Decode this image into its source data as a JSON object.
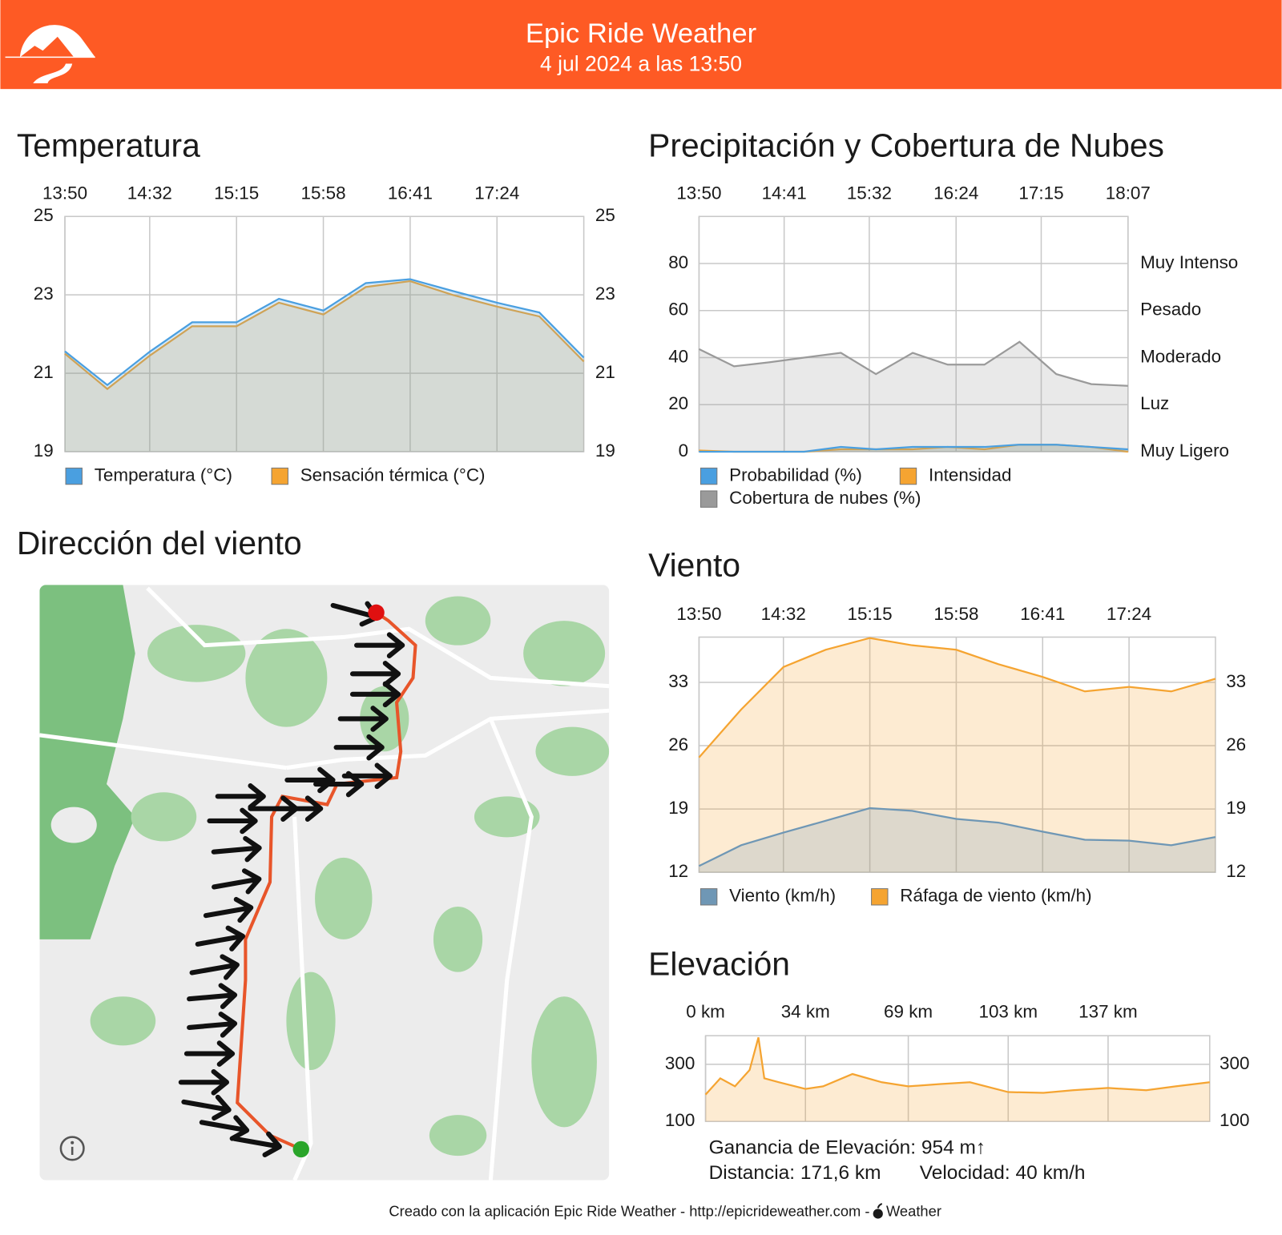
{
  "header": {
    "title": "Epic Ride Weather",
    "subtitle": "4 jul 2024 a las 13:50"
  },
  "chart_data": [
    {
      "type": "area",
      "title": "Temperatura",
      "x": [
        "13:50",
        "14:11",
        "14:32",
        "14:53",
        "15:15",
        "15:36",
        "15:58",
        "16:19",
        "16:41",
        "17:02",
        "17:24",
        "17:45",
        "18:07"
      ],
      "xlim": [
        "13:50",
        "18:07"
      ],
      "xticks": [
        "13:50",
        "14:32",
        "15:15",
        "15:58",
        "16:41",
        "17:24"
      ],
      "ylim": [
        19,
        25
      ],
      "yticks": [
        19,
        21,
        23,
        25
      ],
      "y2lim": [
        19,
        25
      ],
      "y2ticks": [
        19,
        21,
        23,
        25
      ],
      "grid": true,
      "series": [
        {
          "name": "Temperatura (°C)",
          "color": "#4a9fe0",
          "values": [
            21.56,
            20.7,
            21.55,
            22.3,
            22.3,
            22.9,
            22.6,
            23.3,
            23.4,
            23.1,
            22.8,
            22.55,
            21.4
          ]
        },
        {
          "name": "Sensación térmica (°C)",
          "color": "#f5a431",
          "values": [
            21.5,
            20.6,
            21.45,
            22.2,
            22.2,
            22.8,
            22.5,
            23.2,
            23.35,
            23.0,
            22.7,
            22.45,
            21.3
          ]
        }
      ]
    },
    {
      "type": "area",
      "title": "Precipitación y Cobertura de Nubes",
      "x": [
        "13:50",
        "14:11",
        "14:32",
        "14:53",
        "15:15",
        "15:36",
        "15:58",
        "16:19",
        "16:41",
        "17:02",
        "17:24",
        "17:45",
        "18:07"
      ],
      "xlim": [
        "13:50",
        "18:07"
      ],
      "xticks": [
        "13:50",
        "14:41",
        "15:32",
        "16:24",
        "17:15",
        "18:07"
      ],
      "ylim": [
        0,
        100
      ],
      "yticks": [
        0,
        20,
        40,
        60,
        80
      ],
      "y2lim": [
        0,
        100
      ],
      "y2ticks": [
        {
          "value": 0,
          "label": "Muy Ligero"
        },
        {
          "value": 20,
          "label": "Luz"
        },
        {
          "value": 40,
          "label": "Moderado"
        },
        {
          "value": 60,
          "label": "Pesado"
        },
        {
          "value": 80,
          "label": "Muy Intenso"
        }
      ],
      "grid": true,
      "series": [
        {
          "name": "Probabilidad (%)",
          "color": "#4a9fe0",
          "values": [
            0,
            0,
            0,
            0,
            2,
            1,
            2,
            2,
            2,
            3,
            3,
            2,
            1
          ]
        },
        {
          "name": "Intensidad",
          "color": "#f5a431",
          "axis": "y2",
          "values": [
            0.5,
            0,
            0,
            0,
            1,
            1,
            1,
            2,
            1,
            3,
            3,
            2,
            0
          ]
        },
        {
          "name": "Cobertura de nubes (%)",
          "color": "#9a9a9a",
          "values": [
            43.6,
            36.3,
            38,
            40,
            42,
            33,
            42,
            37,
            37,
            46.7,
            33,
            28.7,
            28
          ]
        }
      ]
    },
    {
      "type": "area",
      "title": "Viento",
      "x": [
        "13:50",
        "14:11",
        "14:32",
        "14:53",
        "15:15",
        "15:36",
        "15:58",
        "16:19",
        "16:41",
        "17:02",
        "17:24",
        "17:45",
        "18:07"
      ],
      "xlim": [
        "13:50",
        "18:07"
      ],
      "xticks": [
        "13:50",
        "14:32",
        "15:15",
        "15:58",
        "16:41",
        "17:24"
      ],
      "ylim": [
        12,
        38
      ],
      "yticks": [
        12,
        19,
        26,
        33
      ],
      "y2lim": [
        12,
        38
      ],
      "y2ticks": [
        12,
        19,
        26,
        33
      ],
      "grid": true,
      "series": [
        {
          "name": "Viento (km/h)",
          "color": "#6f97b5",
          "values": [
            12.7,
            15,
            16.4,
            17.7,
            19.1,
            18.8,
            17.9,
            17.5,
            16.5,
            15.6,
            15.5,
            15,
            15.9
          ]
        },
        {
          "name": "Ráfaga de viento (km/h)",
          "color": "#f5a431",
          "values": [
            24.7,
            30,
            34.7,
            36.6,
            37.9,
            37.1,
            36.6,
            35,
            33.6,
            32,
            32.5,
            32,
            33.4
          ]
        }
      ]
    },
    {
      "type": "area",
      "title": "Elevación",
      "x": [
        0,
        5,
        10,
        15,
        18,
        20,
        25,
        34,
        40,
        50,
        60,
        69,
        80,
        90,
        103,
        115,
        125,
        137,
        150,
        160,
        171.6
      ],
      "values": [
        194,
        251,
        223,
        280,
        394,
        251,
        237,
        214,
        223,
        266,
        237,
        223,
        231,
        237,
        203,
        200,
        209,
        217,
        209,
        223,
        237
      ],
      "color": "#f5a431",
      "xlim": [
        0,
        171.6
      ],
      "xticks": [
        {
          "value": 0,
          "label": "0 km"
        },
        {
          "value": 34,
          "label": "34 km"
        },
        {
          "value": 69,
          "label": "69 km"
        },
        {
          "value": 103,
          "label": "103 km"
        },
        {
          "value": 137,
          "label": "137 km"
        }
      ],
      "ylim": [
        100,
        400
      ],
      "yticks": [
        100,
        300
      ],
      "y2lim": [
        100,
        400
      ],
      "y2ticks": [
        100,
        300
      ],
      "grid": true
    }
  ],
  "map": {
    "title": "Dirección del viento"
  },
  "stats": {
    "gain": "Ganancia de Elevación: 954 m↑",
    "distance": "Distancia: 171,6 km",
    "speed": "Velocidad: 40 km/h"
  },
  "footer": {
    "text": "Creado con la aplicación Epic Ride Weather - http://epicrideweather.com -",
    "brand": "Weather"
  }
}
